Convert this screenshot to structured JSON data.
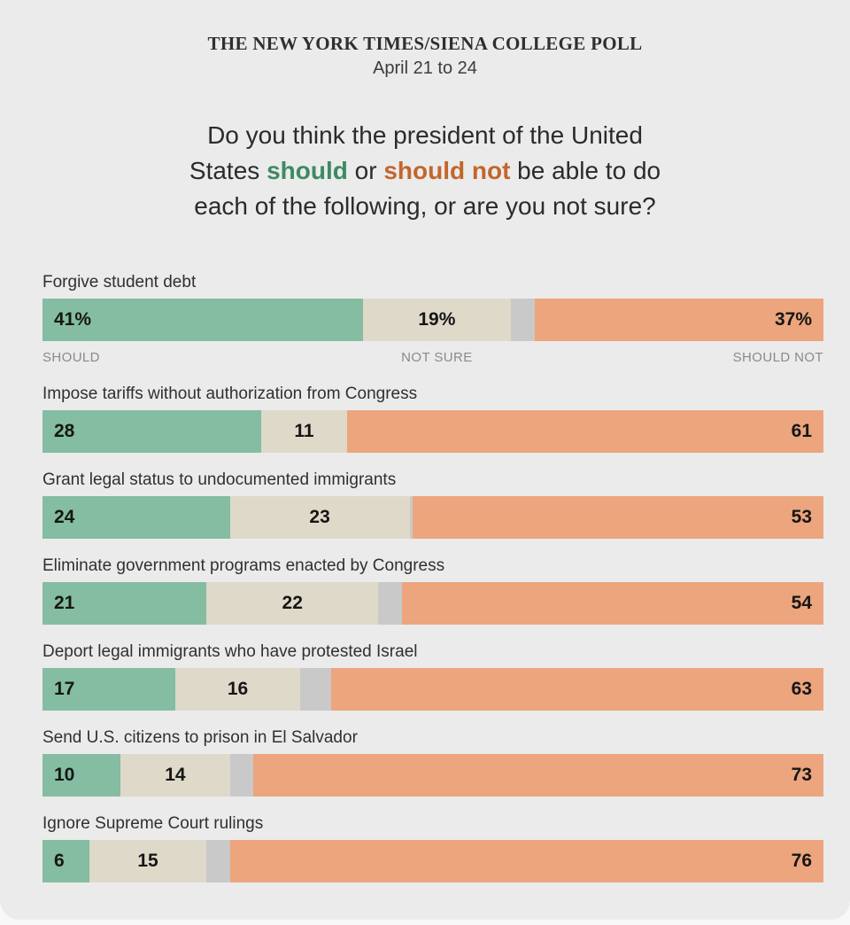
{
  "header": {
    "title": "THE NEW YORK TIMES/SIENA COLLEGE POLL",
    "date": "April 21 to 24"
  },
  "question": {
    "line1": "Do you think the president of the United",
    "line2_pre": "States ",
    "line2_should": "should",
    "line2_mid": " or ",
    "line2_should_not": "should not",
    "line2_post": " be able to do",
    "line3": "each of the following, or are you not sure?"
  },
  "legend": {
    "should": "SHOULD",
    "not_sure": "NOT SURE",
    "should_not": "SHOULD NOT"
  },
  "colors": {
    "background": "#ebebeb",
    "should_bar": "#84bda1",
    "not_sure_bar": "#ded9c9",
    "gap_bar": "#c9c9c9",
    "should_not_bar": "#eca57d",
    "should_text": "#3e8a63",
    "should_not_text": "#c2662c"
  },
  "chart_data": {
    "type": "bar",
    "orientation": "horizontal",
    "stacked": true,
    "title": "Do you think the president of the United States should or should not be able to do each of the following, or are you not sure?",
    "categories": [
      "Forgive student debt",
      "Impose tariffs without authorization from Congress",
      "Grant legal status to undocumented immigrants",
      "Eliminate government programs enacted by Congress",
      "Deport legal immigrants who have protested Israel",
      "Send U.S. citizens to prison in El Salvador",
      "Ignore Supreme Court rulings"
    ],
    "series": [
      {
        "name": "Should",
        "values": [
          41,
          28,
          24,
          21,
          17,
          10,
          6
        ]
      },
      {
        "name": "Not sure",
        "values": [
          19,
          11,
          23,
          22,
          16,
          14,
          15
        ]
      },
      {
        "name": "Should not",
        "values": [
          37,
          61,
          53,
          54,
          63,
          73,
          76
        ]
      }
    ],
    "xlim": [
      0,
      100
    ],
    "value_suffix_first_row": "%",
    "rows": [
      {
        "label": "Forgive student debt",
        "should": 41,
        "not_sure": 19,
        "gap": 3,
        "should_not": 37,
        "d_should": "41%",
        "d_not_sure": "19%",
        "d_should_not": "37%"
      },
      {
        "label": "Impose tariffs without authorization from Congress",
        "should": 28,
        "not_sure": 11,
        "gap": 0,
        "should_not": 61,
        "d_should": "28",
        "d_not_sure": "11",
        "d_should_not": "61"
      },
      {
        "label": "Grant legal status to undocumented immigrants",
        "should": 24,
        "not_sure": 23,
        "gap": 0.4,
        "should_not": 53,
        "d_should": "24",
        "d_not_sure": "23",
        "d_should_not": "53"
      },
      {
        "label": "Eliminate government programs enacted by Congress",
        "should": 21,
        "not_sure": 22,
        "gap": 3,
        "should_not": 54,
        "d_should": "21",
        "d_not_sure": "22",
        "d_should_not": "54"
      },
      {
        "label": "Deport legal immigrants who have protested Israel",
        "should": 17,
        "not_sure": 16,
        "gap": 4,
        "should_not": 63,
        "d_should": "17",
        "d_not_sure": "16",
        "d_should_not": "63"
      },
      {
        "label": "Send U.S. citizens to prison in El Salvador",
        "should": 10,
        "not_sure": 14,
        "gap": 3,
        "should_not": 73,
        "d_should": "10",
        "d_not_sure": "14",
        "d_should_not": "73"
      },
      {
        "label": "Ignore Supreme Court rulings",
        "should": 6,
        "not_sure": 15,
        "gap": 3,
        "should_not": 76,
        "d_should": "6",
        "d_not_sure": "15",
        "d_should_not": "76"
      }
    ]
  }
}
